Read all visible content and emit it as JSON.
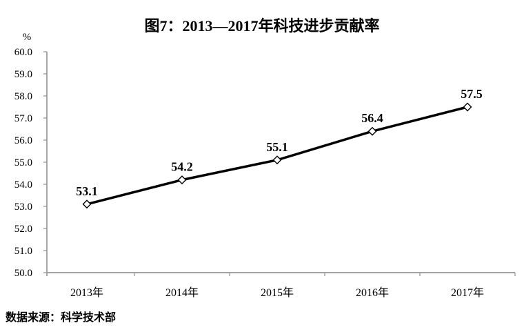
{
  "title": "图7：2013—2017年科技进步贡献率",
  "source_note": "数据来源：科学技术部",
  "chart_data": {
    "type": "line",
    "title": "图7：2013—2017年科技进步贡献率",
    "categories": [
      "2013年",
      "2014年",
      "2015年",
      "2016年",
      "2017年"
    ],
    "series": [
      {
        "name": "科技进步贡献率",
        "values": [
          53.1,
          54.2,
          55.1,
          56.4,
          57.5
        ],
        "data_labels": [
          "53.1",
          "54.2",
          "55.1",
          "56.4",
          "57.5"
        ]
      }
    ],
    "xlabel": "",
    "ylabel": "%",
    "ylim": [
      50.0,
      60.0
    ],
    "ytick_step": 1.0,
    "ytick_labels": [
      "50.0",
      "51.0",
      "52.0",
      "53.0",
      "54.0",
      "55.0",
      "56.0",
      "57.0",
      "58.0",
      "59.0",
      "60.0"
    ],
    "grid": false,
    "legend_position": "none",
    "line_color": "#000000",
    "marker_shape": "diamond",
    "marker_fill": "#ffffff",
    "marker_stroke": "#000000",
    "axis_color": "#969696",
    "text_color": "#000000",
    "source": "数据来源：科学技术部"
  }
}
